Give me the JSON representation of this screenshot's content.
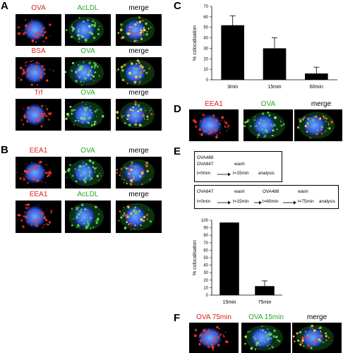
{
  "panels": {
    "A": {
      "letter": "A",
      "rows": [
        {
          "left": "OVA",
          "mid": "AcLDL",
          "right": "merge"
        },
        {
          "left": "BSA",
          "mid": "OVA",
          "right": "merge"
        },
        {
          "left": "Trf",
          "mid": "OVA",
          "right": "merge"
        }
      ]
    },
    "B": {
      "letter": "B",
      "rows": [
        {
          "left": "EEA1",
          "mid": "OVA",
          "right": "merge"
        },
        {
          "left": "EEA1",
          "mid": "AcLDL",
          "right": "merge"
        }
      ]
    },
    "C": {
      "letter": "C"
    },
    "D": {
      "letter": "D",
      "left": "EEA1",
      "mid": "OVA",
      "right": "merge"
    },
    "E": {
      "letter": "E",
      "box1": {
        "row1a": "OVA488",
        "row1b": "OVA647",
        "wash": "wash",
        "t0": "t=0min",
        "t15": "t=15min",
        "analysis": "analysis"
      },
      "box2": {
        "l1a": "OVA647",
        "wash1": "wash",
        "l1b": "OVA488",
        "wash2": "wash",
        "t0": "t=0min",
        "t15": "t=15min",
        "t60": "t=60min",
        "t75": "t=75min",
        "analysis": "analysis"
      }
    },
    "F": {
      "letter": "F",
      "left": "OVA 75min",
      "mid": "OVA 15min",
      "right": "merge"
    }
  },
  "chart_data": [
    {
      "type": "bar",
      "panel": "C",
      "categories": [
        "3min",
        "15min",
        "60min"
      ],
      "values": [
        52,
        30,
        6
      ],
      "errors": [
        9,
        10,
        6
      ],
      "ylabel": "% colocalisation",
      "ylim": [
        0,
        70
      ],
      "yticks": [
        0,
        10,
        20,
        30,
        40,
        50,
        60,
        70
      ],
      "color": "#000000"
    },
    {
      "type": "bar",
      "panel": "E",
      "categories": [
        "15min",
        "75min"
      ],
      "values": [
        97,
        12
      ],
      "errors": [
        0,
        7
      ],
      "ylabel": "% colocalisation",
      "ylim": [
        0,
        100
      ],
      "yticks": [
        0,
        10,
        20,
        30,
        40,
        50,
        60,
        70,
        80,
        90,
        100
      ],
      "color": "#000000"
    }
  ]
}
